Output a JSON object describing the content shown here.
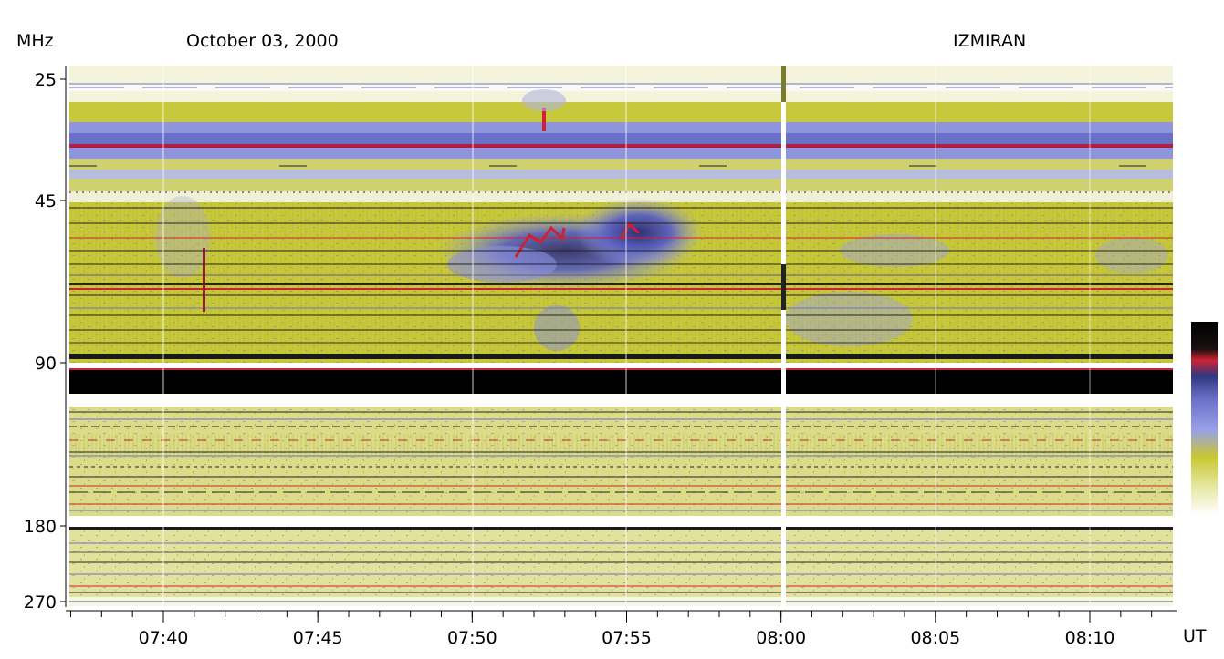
{
  "header": {
    "y_unit": "MHz",
    "date": "October 03, 2000",
    "observatory": "IZMIRAN"
  },
  "chart_data": {
    "type": "heatmap",
    "title": "October 03, 2000",
    "source": "IZMIRAN",
    "ylabel": "MHz",
    "xlabel": "UT",
    "x_range": [
      "07:37",
      "08:12:30"
    ],
    "y_range": [
      25,
      270
    ],
    "y_ticks": [
      {
        "label": "25",
        "value": 25
      },
      {
        "label": "45",
        "value": 45
      },
      {
        "label": "90",
        "value": 90
      },
      {
        "label": "180",
        "value": 180
      },
      {
        "label": "270",
        "value": 270
      }
    ],
    "x_ticks": [
      "07:40",
      "07:45",
      "07:50",
      "07:55",
      "08:00",
      "08:05",
      "08:10"
    ],
    "colorbar_colors": [
      "#000000",
      "#cc2233",
      "#6a70c8",
      "#9aa0e8",
      "#c8c830",
      "#ffffff"
    ],
    "features": [
      {
        "kind": "type II burst lane",
        "start": "07:50",
        "end": "07:57",
        "freq_from_mhz": 60,
        "freq_to_mhz": 48
      },
      {
        "kind": "brief burst",
        "time": "07:52",
        "freq_mhz": 31
      }
    ]
  }
}
